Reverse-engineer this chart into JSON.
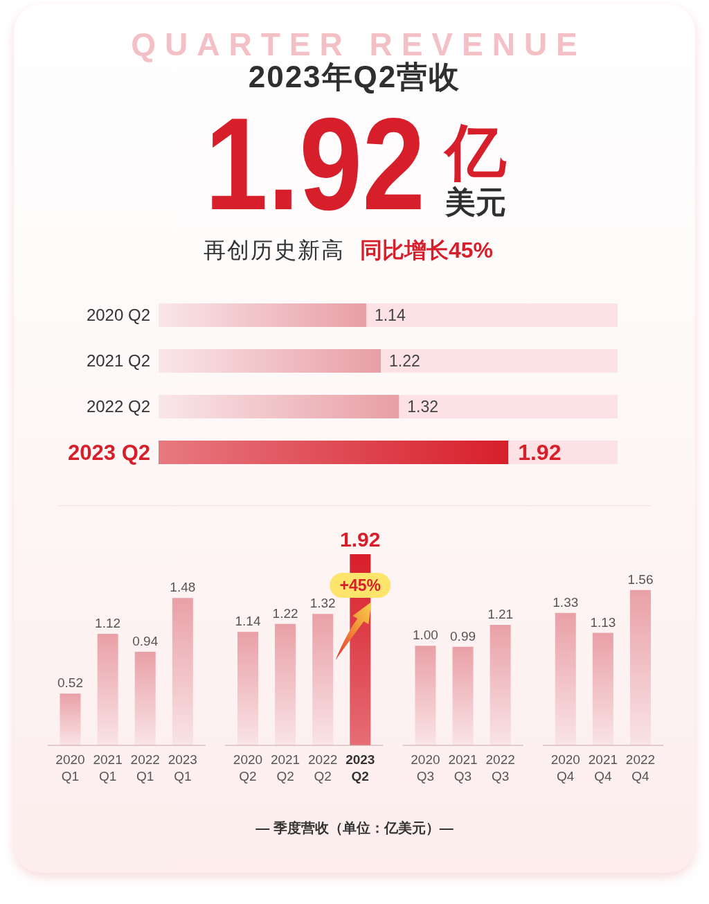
{
  "chart_data": [
    {
      "type": "other",
      "title": "2023年Q2营收",
      "annotations": [
        "QUARTER REVENUE",
        "1.92",
        "亿",
        "美元",
        "再创历史新高",
        "同比增长45%"
      ]
    },
    {
      "type": "bar",
      "orientation": "horizontal",
      "categories": [
        "2020 Q2",
        "2021 Q2",
        "2022 Q2",
        "2023 Q2"
      ],
      "values": [
        1.14,
        1.22,
        1.32,
        1.92
      ],
      "colors": [
        "#e89ea5",
        "#e89ea5",
        "#e89ea5",
        "#d71f2b"
      ],
      "xlim": [
        0,
        2.52
      ],
      "data_labels": true,
      "tick_labels": "y"
    },
    {
      "type": "bar",
      "categories": [
        "2020 Q1",
        "2021 Q1",
        "2022 Q1",
        "2023 Q1",
        null,
        "2020 Q2",
        "2021 Q2",
        "2022 Q2",
        "2023 Q2",
        null,
        "2020 Q3",
        "2021 Q3",
        "2022 Q3",
        null,
        "2020 Q4",
        "2021 Q4",
        "2022 Q4"
      ],
      "values": [
        0.52,
        1.12,
        0.94,
        1.48,
        null,
        1.14,
        1.22,
        1.32,
        1.92,
        null,
        1.0,
        0.99,
        1.21,
        null,
        1.33,
        1.13,
        1.56
      ],
      "colors": [
        "#e9a0a7",
        "#e9a0a7",
        "#e9a0a7",
        "#e9a0a7",
        null,
        "#e9a0a7",
        "#e9a0a7",
        "#e9a0a7",
        "#d81e2a",
        null,
        "#e9a0a7",
        "#e9a0a7",
        "#e9a0a7",
        null,
        "#e9a0a7",
        "#e9a0a7",
        "#e9a0a7"
      ],
      "value_labels": [
        "0.52",
        "1.12",
        "0.94",
        "1.48",
        null,
        "1.14",
        "1.22",
        "1.32",
        "1.92",
        null,
        "1.00",
        "0.99",
        "1.21",
        null,
        "1.33",
        "1.13",
        "1.56"
      ],
      "tick_labels": "x",
      "xlabel": "— 季度营收（单位：亿美元）—",
      "annotations": [
        "+45%"
      ]
    }
  ]
}
